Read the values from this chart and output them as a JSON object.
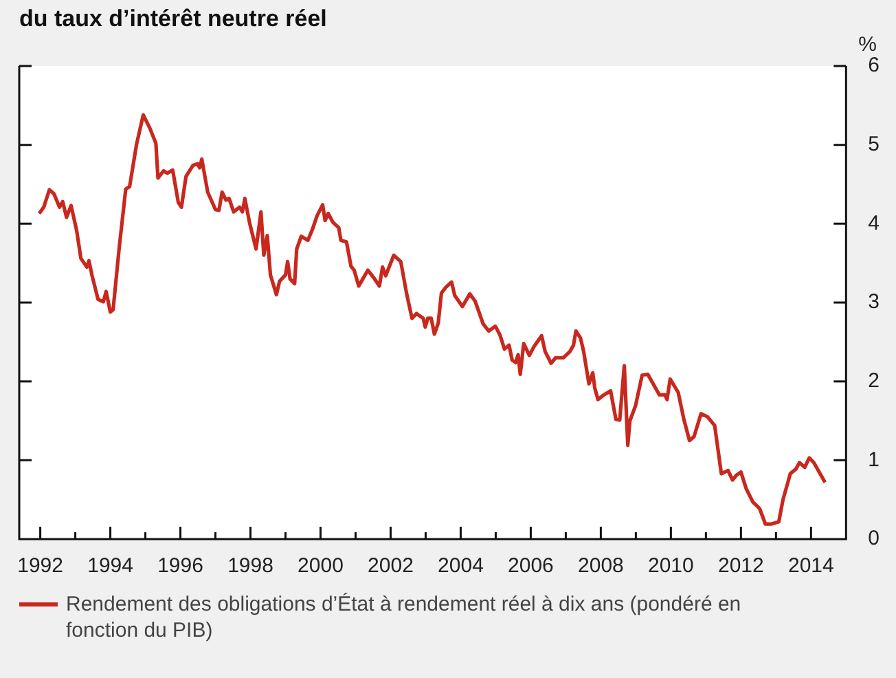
{
  "chart_data": {
    "type": "line",
    "title": "du taux d’intérêt neutre réel",
    "ylabel": "%",
    "legend": "bottom",
    "grid": false,
    "xlim": [
      1991.4,
      2015.0
    ],
    "xticks": [
      1992,
      {
        "value": 1993,
        "label": null
      },
      1994,
      {
        "value": 1995,
        "label": null
      },
      1996,
      {
        "value": 1997,
        "label": null
      },
      1998,
      {
        "value": 1999,
        "label": null
      },
      2000,
      {
        "value": 2001,
        "label": null
      },
      2002,
      {
        "value": 2003,
        "label": null
      },
      2004,
      {
        "value": 2005,
        "label": null
      },
      2006,
      {
        "value": 2007,
        "label": null
      },
      2008,
      {
        "value": 2009,
        "label": null
      },
      2010,
      {
        "value": 2011,
        "label": null
      },
      2012,
      {
        "value": 2013,
        "label": null
      },
      2014
    ],
    "ylim": [
      0,
      6
    ],
    "yticks": [
      0,
      1,
      2,
      3,
      4,
      5,
      6
    ],
    "series": [
      {
        "name": "Rendement des obligations d’État à rendement réel à dix ans (pondéré en fonction du PIB)",
        "color": "#c8281e",
        "x": [
          1991.97,
          1992.1,
          1992.26,
          1992.39,
          1992.55,
          1992.64,
          1992.75,
          1992.88,
          1993.04,
          1993.16,
          1993.33,
          1993.39,
          1993.48,
          1993.65,
          1993.8,
          1993.88,
          1994.0,
          1994.08,
          1994.25,
          1994.44,
          1994.55,
          1994.75,
          1994.94,
          1995.13,
          1995.3,
          1995.36,
          1995.52,
          1995.62,
          1995.78,
          1995.94,
          1996.03,
          1996.16,
          1996.36,
          1996.49,
          1996.55,
          1996.61,
          1996.78,
          1997.0,
          1997.1,
          1997.19,
          1997.3,
          1997.39,
          1997.52,
          1997.69,
          1997.77,
          1997.84,
          1997.97,
          1998.16,
          1998.3,
          1998.38,
          1998.48,
          1998.57,
          1998.74,
          1998.83,
          1999.0,
          1999.06,
          1999.13,
          1999.26,
          1999.32,
          1999.45,
          1999.64,
          1999.77,
          1999.9,
          2000.06,
          2000.13,
          2000.22,
          2000.35,
          2000.52,
          2000.58,
          2000.74,
          2000.87,
          2000.96,
          2001.09,
          2001.35,
          2001.51,
          2001.68,
          2001.77,
          2001.86,
          2002.09,
          2002.29,
          2002.45,
          2002.61,
          2002.74,
          2002.93,
          2002.99,
          2003.06,
          2003.16,
          2003.25,
          2003.36,
          2003.45,
          2003.57,
          2003.74,
          2003.83,
          2004.05,
          2004.26,
          2004.41,
          2004.64,
          2004.8,
          2004.99,
          2005.12,
          2005.25,
          2005.38,
          2005.47,
          2005.57,
          2005.64,
          2005.7,
          2005.8,
          2005.96,
          2006.09,
          2006.31,
          2006.41,
          2006.58,
          2006.71,
          2006.93,
          2007.12,
          2007.22,
          2007.29,
          2007.42,
          2007.51,
          2007.66,
          2007.77,
          2007.83,
          2007.92,
          2008.09,
          2008.28,
          2008.43,
          2008.54,
          2008.67,
          2008.77,
          2008.83,
          2008.99,
          2009.18,
          2009.34,
          2009.57,
          2009.67,
          2009.83,
          2009.89,
          2009.98,
          2010.21,
          2010.37,
          2010.53,
          2010.66,
          2010.86,
          2011.05,
          2011.25,
          2011.44,
          2011.63,
          2011.76,
          2011.87,
          2012.0,
          2012.15,
          2012.34,
          2012.53,
          2012.7,
          2012.86,
          2013.08,
          2013.2,
          2013.41,
          2013.57,
          2013.67,
          2013.82,
          2013.95,
          2014.08,
          2014.4
        ],
        "values": [
          4.13,
          4.21,
          4.43,
          4.38,
          4.21,
          4.28,
          4.08,
          4.23,
          3.91,
          3.56,
          3.45,
          3.53,
          3.34,
          3.04,
          3.01,
          3.14,
          2.88,
          2.91,
          3.68,
          4.44,
          4.47,
          5.01,
          5.38,
          5.21,
          5.02,
          4.58,
          4.67,
          4.64,
          4.68,
          4.27,
          4.21,
          4.6,
          4.74,
          4.76,
          4.71,
          4.82,
          4.4,
          4.18,
          4.17,
          4.4,
          4.3,
          4.32,
          4.15,
          4.21,
          4.15,
          4.32,
          4.02,
          3.68,
          4.15,
          3.6,
          3.85,
          3.35,
          3.1,
          3.27,
          3.35,
          3.52,
          3.3,
          3.24,
          3.68,
          3.84,
          3.79,
          3.93,
          4.1,
          4.24,
          4.04,
          4.13,
          4.02,
          3.95,
          3.79,
          3.77,
          3.46,
          3.41,
          3.21,
          3.41,
          3.32,
          3.21,
          3.45,
          3.34,
          3.6,
          3.52,
          3.13,
          2.8,
          2.86,
          2.8,
          2.69,
          2.8,
          2.8,
          2.6,
          2.74,
          3.12,
          3.19,
          3.26,
          3.09,
          2.95,
          3.11,
          3.02,
          2.73,
          2.64,
          2.7,
          2.59,
          2.41,
          2.46,
          2.27,
          2.24,
          2.34,
          2.09,
          2.48,
          2.33,
          2.44,
          2.58,
          2.38,
          2.23,
          2.3,
          2.3,
          2.38,
          2.46,
          2.64,
          2.55,
          2.38,
          1.97,
          2.11,
          1.91,
          1.77,
          1.83,
          1.88,
          1.52,
          1.51,
          2.2,
          1.19,
          1.5,
          1.69,
          2.08,
          2.09,
          1.91,
          1.83,
          1.83,
          1.77,
          2.03,
          1.86,
          1.52,
          1.25,
          1.3,
          1.59,
          1.55,
          1.44,
          0.83,
          0.87,
          0.75,
          0.81,
          0.85,
          0.64,
          0.47,
          0.39,
          0.19,
          0.19,
          0.22,
          0.5,
          0.83,
          0.89,
          0.97,
          0.91,
          1.03,
          0.97,
          0.72
        ]
      }
    ]
  }
}
